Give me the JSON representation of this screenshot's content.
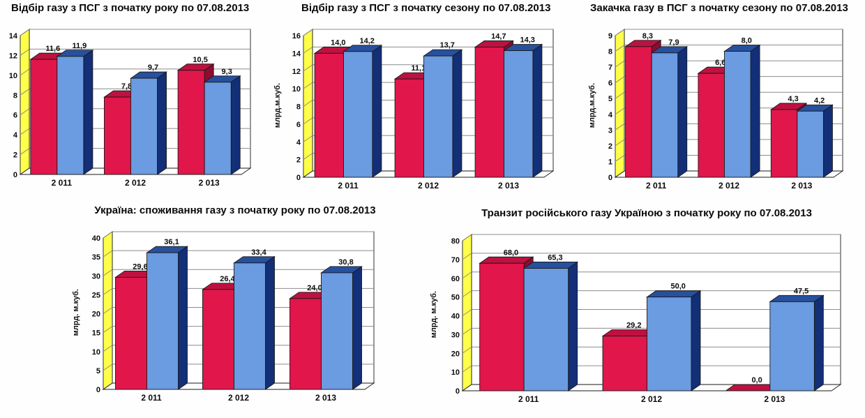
{
  "colors": {
    "red_front": "#e1164a",
    "red_side": "#8d0c30",
    "red_top": "#bf1140",
    "blue_front": "#6b9be0",
    "blue_side": "#122f77",
    "blue_top": "#27509e",
    "wall": "#ffff4a",
    "floor": "#fcfcfc",
    "grid": "#8c8c8c",
    "axis_line": "#1a1a1a",
    "text": "#0a0a0a"
  },
  "chart_data": [
    {
      "type": "bar",
      "variant": "3d-clustered",
      "title": "Відбір газу з ПСГ з початку року по 07.08.2013",
      "ylabel": "",
      "xlabel": "",
      "categories": [
        "2 011",
        "2 012",
        "2 013"
      ],
      "series": [
        {
          "name": "red",
          "color_key": "red",
          "values": [
            11.6,
            7.8,
            10.5
          ],
          "labels": [
            "11,6",
            "7,8",
            "10,5"
          ]
        },
        {
          "name": "blue",
          "color_key": "blue",
          "values": [
            11.9,
            9.7,
            9.3
          ],
          "labels": [
            "11,9",
            "9,7",
            "9,3"
          ]
        }
      ],
      "ylim": [
        0,
        14
      ],
      "ytick_step": 2,
      "grid": true,
      "legend": "none"
    },
    {
      "type": "bar",
      "variant": "3d-clustered",
      "title": "Відбір газу з ПСГ з початку сезону по 07.08.2013",
      "ylabel": "млрд.м.куб.",
      "xlabel": "",
      "categories": [
        "2 011",
        "2 012",
        "2 013"
      ],
      "series": [
        {
          "name": "red",
          "color_key": "red",
          "values": [
            14.0,
            11.1,
            14.7
          ],
          "labels": [
            "14,0",
            "11,1",
            "14,7"
          ]
        },
        {
          "name": "blue",
          "color_key": "blue",
          "values": [
            14.2,
            13.7,
            14.3
          ],
          "labels": [
            "14,2",
            "13,7",
            "14,3"
          ]
        }
      ],
      "ylim": [
        0,
        16
      ],
      "ytick_step": 2,
      "grid": true,
      "legend": "none"
    },
    {
      "type": "bar",
      "variant": "3d-clustered",
      "title": "Закачка газу в ПСГ з початку сезону по 07.08.2013",
      "ylabel": "млрд.м.куб.",
      "xlabel": "",
      "categories": [
        "2 011",
        "2 012",
        "2 013"
      ],
      "series": [
        {
          "name": "red",
          "color_key": "red",
          "values": [
            8.3,
            6.6,
            4.3
          ],
          "labels": [
            "8,3",
            "6,6",
            "4,3"
          ]
        },
        {
          "name": "blue",
          "color_key": "blue",
          "values": [
            7.9,
            8.0,
            4.2
          ],
          "labels": [
            "7,9",
            "8,0",
            "4,2"
          ]
        }
      ],
      "ylim": [
        0,
        9
      ],
      "ytick_step": 1,
      "grid": true,
      "legend": "none"
    },
    {
      "type": "bar",
      "variant": "3d-clustered",
      "title": "Україна: споживання газу з початку року по 07.08.2013",
      "ylabel": "млрд. м.куб.",
      "xlabel": "",
      "categories": [
        "2 011",
        "2 012",
        "2 013"
      ],
      "series": [
        {
          "name": "red",
          "color_key": "red",
          "values": [
            29.6,
            26.4,
            24.0
          ],
          "labels": [
            "29,6",
            "26,4",
            "24,0"
          ]
        },
        {
          "name": "blue",
          "color_key": "blue",
          "values": [
            36.1,
            33.4,
            30.8
          ],
          "labels": [
            "36,1",
            "33,4",
            "30,8"
          ]
        }
      ],
      "ylim": [
        0,
        40
      ],
      "ytick_step": 5,
      "grid": true,
      "legend": "none"
    },
    {
      "type": "bar",
      "variant": "3d-clustered",
      "title": "Транзит російського газу Україною з початку року по 07.08.2013",
      "ylabel": "млрд. м.куб.",
      "xlabel": "",
      "categories": [
        "2 011",
        "2 012",
        "2 013"
      ],
      "series": [
        {
          "name": "red",
          "color_key": "red",
          "values": [
            68.0,
            29.2,
            0.0
          ],
          "labels": [
            "68,0",
            "29,2",
            "0,0"
          ]
        },
        {
          "name": "blue",
          "color_key": "blue",
          "values": [
            65.3,
            50.0,
            47.5
          ],
          "labels": [
            "65,3",
            "50,0",
            "47,5"
          ]
        }
      ],
      "ylim": [
        0,
        80
      ],
      "ytick_step": 10,
      "grid": true,
      "legend": "none"
    }
  ]
}
